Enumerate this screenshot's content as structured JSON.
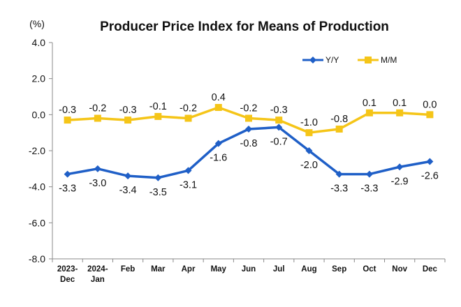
{
  "chart_data": {
    "type": "line",
    "title": "Producer Price Index for Means of Production",
    "unit_label": "(%)",
    "categories": [
      [
        "2023-",
        "Dec"
      ],
      [
        "2024-",
        "Jan"
      ],
      [
        "Feb"
      ],
      [
        "Mar"
      ],
      [
        "Apr"
      ],
      [
        "May"
      ],
      [
        "Jun"
      ],
      [
        "Jul"
      ],
      [
        "Aug"
      ],
      [
        "Sep"
      ],
      [
        "Oct"
      ],
      [
        "Nov"
      ],
      [
        "Dec"
      ]
    ],
    "ylim": [
      -8.0,
      4.0
    ],
    "yticks": [
      "4.0",
      "2.0",
      "0.0",
      "-2.0",
      "-4.0",
      "-6.0",
      "-8.0"
    ],
    "ytick_values": [
      4.0,
      2.0,
      0.0,
      -2.0,
      -4.0,
      -6.0,
      -8.0
    ],
    "grid": false,
    "legend_position": "top-right",
    "series": [
      {
        "name": "Y/Y",
        "color": "#1f5fc7",
        "marker": "diamond",
        "label_position": "below",
        "values": [
          -3.3,
          -3.0,
          -3.4,
          -3.5,
          -3.1,
          -1.6,
          -0.8,
          -0.7,
          -2.0,
          -3.3,
          -3.3,
          -2.9,
          -2.6
        ],
        "labels": [
          "-3.3",
          "-3.0",
          "-3.4",
          "-3.5",
          "-3.1",
          "-1.6",
          "-0.8",
          "-0.7",
          "-2.0",
          "-3.3",
          "-3.3",
          "-2.9",
          "-2.6"
        ]
      },
      {
        "name": "M/M",
        "color": "#f5c518",
        "marker": "square",
        "label_position": "above",
        "values": [
          -0.3,
          -0.2,
          -0.3,
          -0.1,
          -0.2,
          0.4,
          -0.2,
          -0.3,
          -1.0,
          -0.8,
          0.1,
          0.1,
          0.0
        ],
        "labels": [
          "-0.3",
          "-0.2",
          "-0.3",
          "-0.1",
          "-0.2",
          "0.4",
          "-0.2",
          "-0.3",
          "-1.0",
          "-0.8",
          "0.1",
          "0.1",
          "0.0"
        ]
      }
    ]
  }
}
